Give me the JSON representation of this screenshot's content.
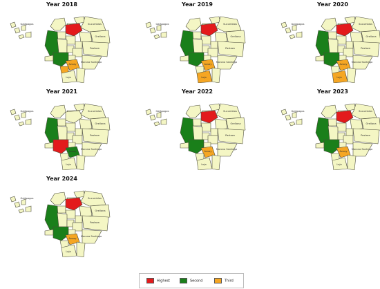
{
  "panels": [
    {
      "title": "Year 2018",
      "highest": "Pichincha",
      "second": [
        "Guayas",
        "Manabí"
      ],
      "third": [
        "El Oro",
        "Azuay"
      ],
      "labels": [
        "Galápagos",
        "Sucumbíos",
        "Orellana",
        "Pastaza",
        "Morona Santiago",
        "Azuay",
        "Loja"
      ]
    },
    {
      "title": "Year 2019",
      "highest": "Pichincha",
      "second": [
        "Guayas",
        "Manabí"
      ],
      "third": [
        "Azuay",
        "Loja"
      ],
      "labels": [
        "Galápagos",
        "Sucumbíos",
        "Orellana",
        "Pastaza",
        "Morona Santiago",
        "Azuay",
        "Loja"
      ]
    },
    {
      "title": "Year 2020",
      "highest": "Pichincha",
      "second": [
        "Guayas",
        "Manabí"
      ],
      "third": [
        "Azuay",
        "Loja"
      ],
      "labels": [
        "Galápagos",
        "Sucumbíos",
        "Orellana",
        "Pastaza",
        "Morona Santiago",
        "Azuay",
        "Loja"
      ]
    },
    {
      "title": "Year 2021",
      "highest": "Guayas",
      "second": [
        "Manabí",
        "Azuay"
      ],
      "third": [],
      "labels": [
        "Galápagos",
        "Sucumbíos",
        "Orellana",
        "Pastaza",
        "Morona Santiago",
        "Azuay",
        "Loja"
      ]
    },
    {
      "title": "Year 2022",
      "highest": "Pichincha",
      "second": [
        "Guayas",
        "Manabí"
      ],
      "third": [
        "Azuay"
      ],
      "labels": [
        "Galápagos",
        "Sucumbíos",
        "Orellana",
        "Pastaza",
        "Morona Santiago",
        "Azuay",
        "Loja"
      ]
    },
    {
      "title": "Year 2023",
      "highest": "Pichincha",
      "second": [
        "Guayas",
        "Manabí"
      ],
      "third": [
        "Azuay"
      ],
      "labels": [
        "Galápagos",
        "Sucumbíos",
        "Orellana",
        "Pastaza",
        "Morona Santiago",
        "Azuay",
        "Loja"
      ]
    },
    {
      "title": "Year 2024",
      "highest": "Pichincha",
      "second": [
        "Guayas",
        "Manabí"
      ],
      "third": [
        "Azuay"
      ],
      "labels": [
        "Galápagos",
        "Sucumbíos",
        "Orellana",
        "Pastaza",
        "Morona Santiago",
        "Azuay",
        "Loja"
      ]
    }
  ],
  "legend": {
    "highest": {
      "label": "Highest",
      "color": "#e31a1c"
    },
    "second": {
      "label": "Second",
      "color": "#1a7f1a"
    },
    "third": {
      "label": "Third",
      "color": "#f5a623"
    }
  },
  "colors": {
    "base": "#f4f6c4",
    "outline": "#4a4a3a"
  }
}
